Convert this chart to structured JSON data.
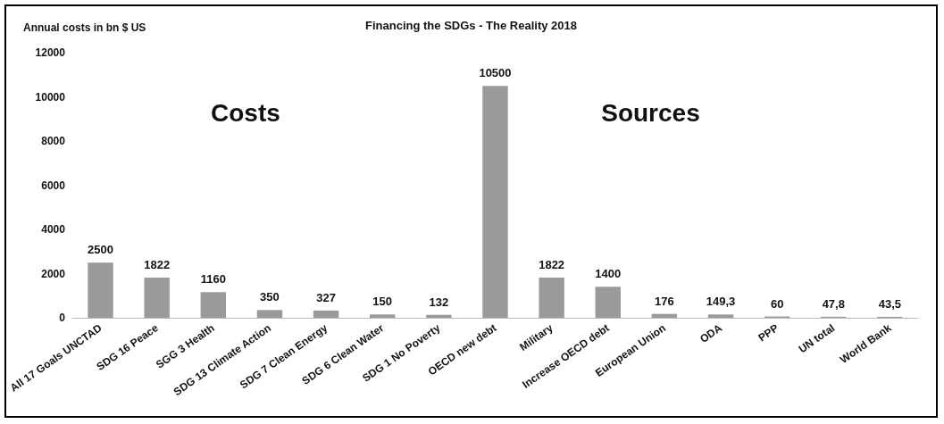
{
  "chart_data": {
    "type": "bar",
    "title": "Financing the SDGs - The Reality 2018",
    "ylabel": "Annual costs in bn $ US",
    "categories": [
      "All 17 Goals UNCTAD",
      "SDG 16 Peace",
      "SGG 3 Health",
      "SDG 13 Climate Action",
      "SDG 7 Clean Energy",
      "SDG 6 Clean Water",
      "SDG 1 No Poverty",
      "OECD new debt",
      "Military",
      "Increase OECD debt",
      "European Union",
      "ODA",
      "PPP",
      "UN total",
      "World Bank"
    ],
    "values": [
      2500,
      1822,
      1160,
      350,
      327,
      150,
      132,
      10500,
      1822,
      1400,
      176,
      149.3,
      60,
      47.8,
      43.5
    ],
    "value_labels": [
      "2500",
      "1822",
      "1160",
      "350",
      "327",
      "150",
      "132",
      "10500",
      "1822",
      "1400",
      "176",
      "149,3",
      "60",
      "47,8",
      "43,5"
    ],
    "color": "#9a9a9a",
    "ylim": [
      0,
      12000
    ],
    "yticks": [
      0,
      2000,
      4000,
      6000,
      8000,
      10000,
      12000
    ],
    "grid": false,
    "annotations": [
      "Costs",
      "Sources"
    ]
  }
}
